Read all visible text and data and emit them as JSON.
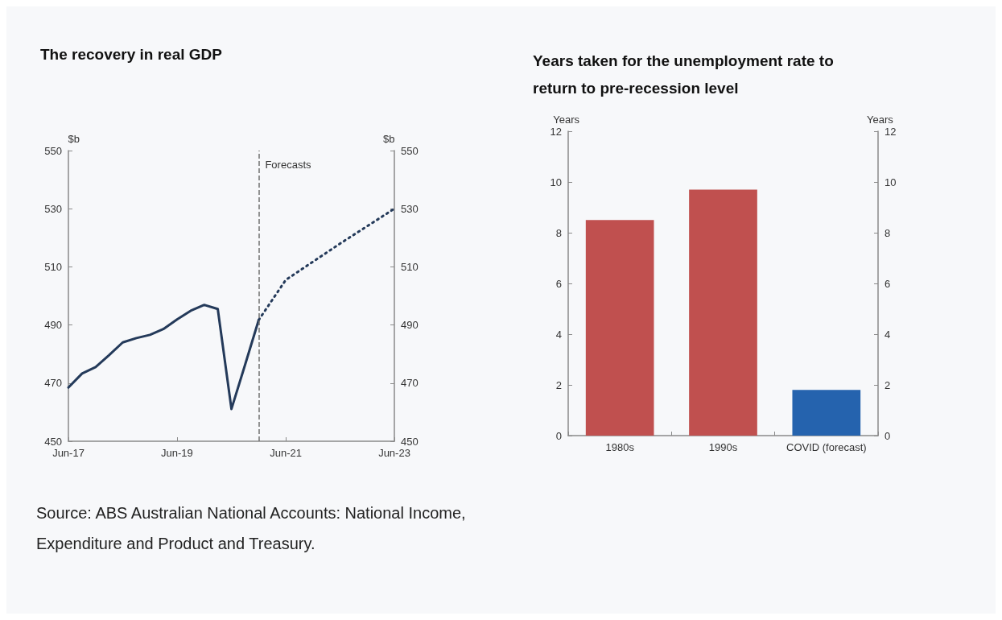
{
  "chart_data": [
    {
      "type": "line",
      "title": "The recovery in real GDP",
      "ylabel": "$b",
      "y2label": "$b",
      "series": [
        {
          "color": "#243a5a",
          "line_style": "solid",
          "x": [
            "2017-06",
            "2017-09",
            "2017-12",
            "2018-03",
            "2018-06",
            "2018-09",
            "2018-12",
            "2019-03",
            "2019-06",
            "2019-09",
            "2019-12",
            "2020-03",
            "2020-06",
            "2020-09",
            "2020-12"
          ],
          "values": [
            468.5,
            473.3,
            475.5,
            479.6,
            484,
            485.5,
            486.6,
            488.6,
            491.9,
            494.9,
            496.9,
            495.5,
            461.1,
            476.4,
            491.7
          ]
        },
        {
          "color": "#243a5a",
          "line_style": "dotted",
          "x": [
            "2020-12",
            "2021-06",
            "2022-06",
            "2023-06"
          ],
          "values": [
            491.7,
            505.5,
            518,
            530
          ]
        }
      ],
      "xlim": [
        "2017-06",
        "2023-06"
      ],
      "xticks": [
        {
          "value": "2017-06",
          "label": "Jun-17"
        },
        {
          "value": "2019-06",
          "label": "Jun-19"
        },
        {
          "value": "2021-06",
          "label": "Jun-21"
        },
        {
          "value": "2023-06",
          "label": "Jun-23"
        }
      ],
      "ylim": [
        450,
        550
      ],
      "yticks": [
        450,
        470,
        490,
        510,
        530,
        550
      ],
      "y2lim": [
        450,
        550
      ],
      "y2ticks": [
        450,
        470,
        490,
        510,
        530,
        550
      ],
      "ref_lines": [
        {
          "axis": "x",
          "value": "2020-12",
          "label": "Forecasts",
          "color": "#707070",
          "line_style": "dashed"
        }
      ],
      "annotations": [
        "Source: ABS Australian National Accounts: National Income, Expenditure and Product and Treasury."
      ]
    },
    {
      "type": "bar",
      "title": "Years taken for the unemployment rate to return to pre-recession level",
      "ylabel": "Years",
      "y2label": "Years",
      "categories": [
        "1980s",
        "1990s",
        "COVID (forecast)"
      ],
      "values": [
        8.5,
        9.7,
        1.8
      ],
      "colors": [
        "#c0504f",
        "#c0504f",
        "#2563ae"
      ],
      "ylim": [
        0,
        12
      ],
      "yticks": [
        0,
        2,
        4,
        6,
        8,
        10,
        12
      ],
      "y2lim": [
        0,
        12
      ],
      "y2ticks": [
        0,
        2,
        4,
        6,
        8,
        10,
        12
      ]
    }
  ]
}
